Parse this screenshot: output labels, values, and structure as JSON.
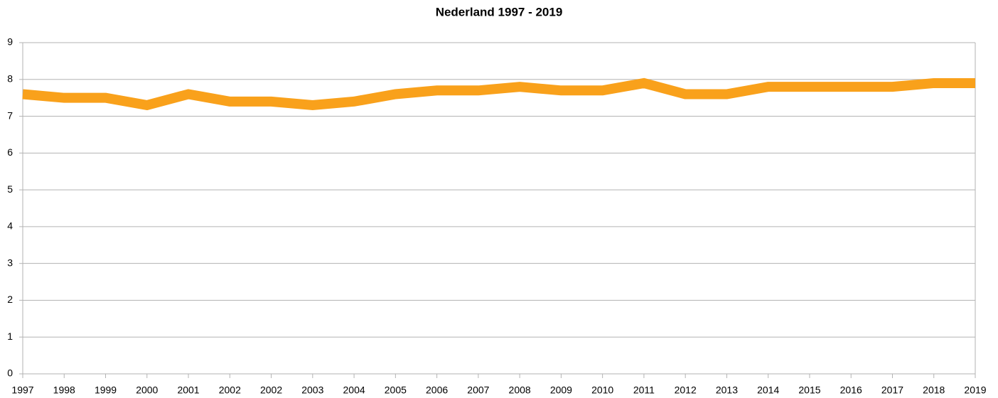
{
  "chart_data": {
    "type": "line",
    "title": "Nederland 1997 - 2019",
    "categories": [
      "1997",
      "1998",
      "1999",
      "2000",
      "2001",
      "2002",
      "2002",
      "2003",
      "2004",
      "2005",
      "2006",
      "2007",
      "2008",
      "2009",
      "2010",
      "2011",
      "2012",
      "2013",
      "2014",
      "2015",
      "2016",
      "2017",
      "2018",
      "2019"
    ],
    "series": [
      {
        "name": "Nederland",
        "color": "#f9a11b",
        "values": [
          7.6,
          7.5,
          7.5,
          7.3,
          7.6,
          7.4,
          7.4,
          7.3,
          7.4,
          7.6,
          7.7,
          7.7,
          7.8,
          7.7,
          7.7,
          7.9,
          7.6,
          7.6,
          7.8,
          7.8,
          7.8,
          7.8,
          7.9,
          7.9
        ]
      }
    ],
    "ylim": [
      0,
      9
    ],
    "yticks": [
      0,
      1,
      2,
      3,
      4,
      5,
      6,
      7,
      8,
      9
    ],
    "grid": true
  }
}
